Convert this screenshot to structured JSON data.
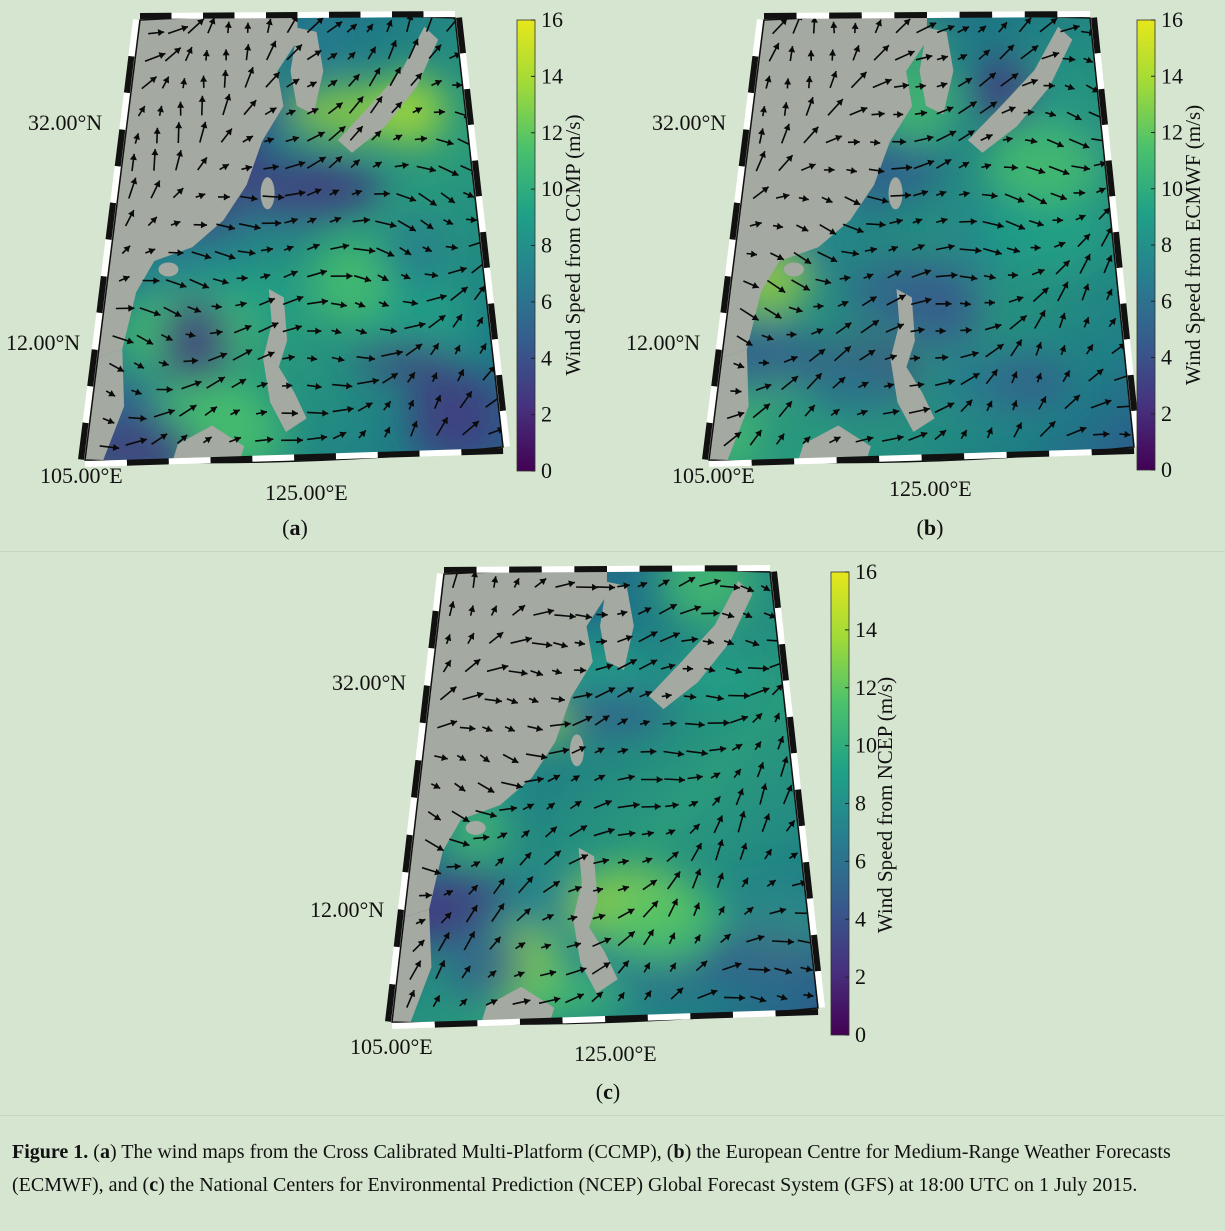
{
  "colors": {
    "page_bg": "#d6e5cf",
    "land": "#a4a9a2",
    "water_low": "#3f1d73",
    "water_mid": "#1e6d86",
    "water_high": "#9bcb43",
    "arrow": "#0a0a0a"
  },
  "colormap": "viridis",
  "panels": [
    {
      "id": "a",
      "colorbar_label": "Wind Speed from CCMP (m/s)",
      "panel_letter": "a",
      "lat_labels": [
        "32.00°N",
        "12.00°N"
      ],
      "lon_labels": [
        "105.00°E",
        "125.00°E"
      ]
    },
    {
      "id": "b",
      "colorbar_label": "Wind Speed from ECMWF (m/s)",
      "panel_letter": "b",
      "lat_labels": [
        "32.00°N",
        "12.00°N"
      ],
      "lon_labels": [
        "105.00°E",
        "125.00°E"
      ]
    },
    {
      "id": "c",
      "colorbar_label": "Wind Speed from NCEP (m/s)",
      "panel_letter": "c",
      "lat_labels": [
        "32.00°N",
        "12.00°N"
      ],
      "lon_labels": [
        "105.00°E",
        "125.00°E"
      ]
    }
  ],
  "colorbar_ticks": [
    "0",
    "2",
    "4",
    "6",
    "8",
    "10",
    "12",
    "14",
    "16"
  ],
  "colorbar_range": [
    0,
    16
  ],
  "caption": {
    "figure_label": "Figure 1.",
    "parts": [
      " (",
      "a",
      ") The wind maps from the Cross Calibrated Multi-Platform (CCMP), (",
      "b",
      ") the European Centre for Medium-Range Weather Forecasts (ECMWF), and (",
      "c",
      ") the National Centers for Environmental Prediction (NCEP) Global Forecast System (GFS) at 18:00 UTC on 1 July 2015."
    ]
  }
}
